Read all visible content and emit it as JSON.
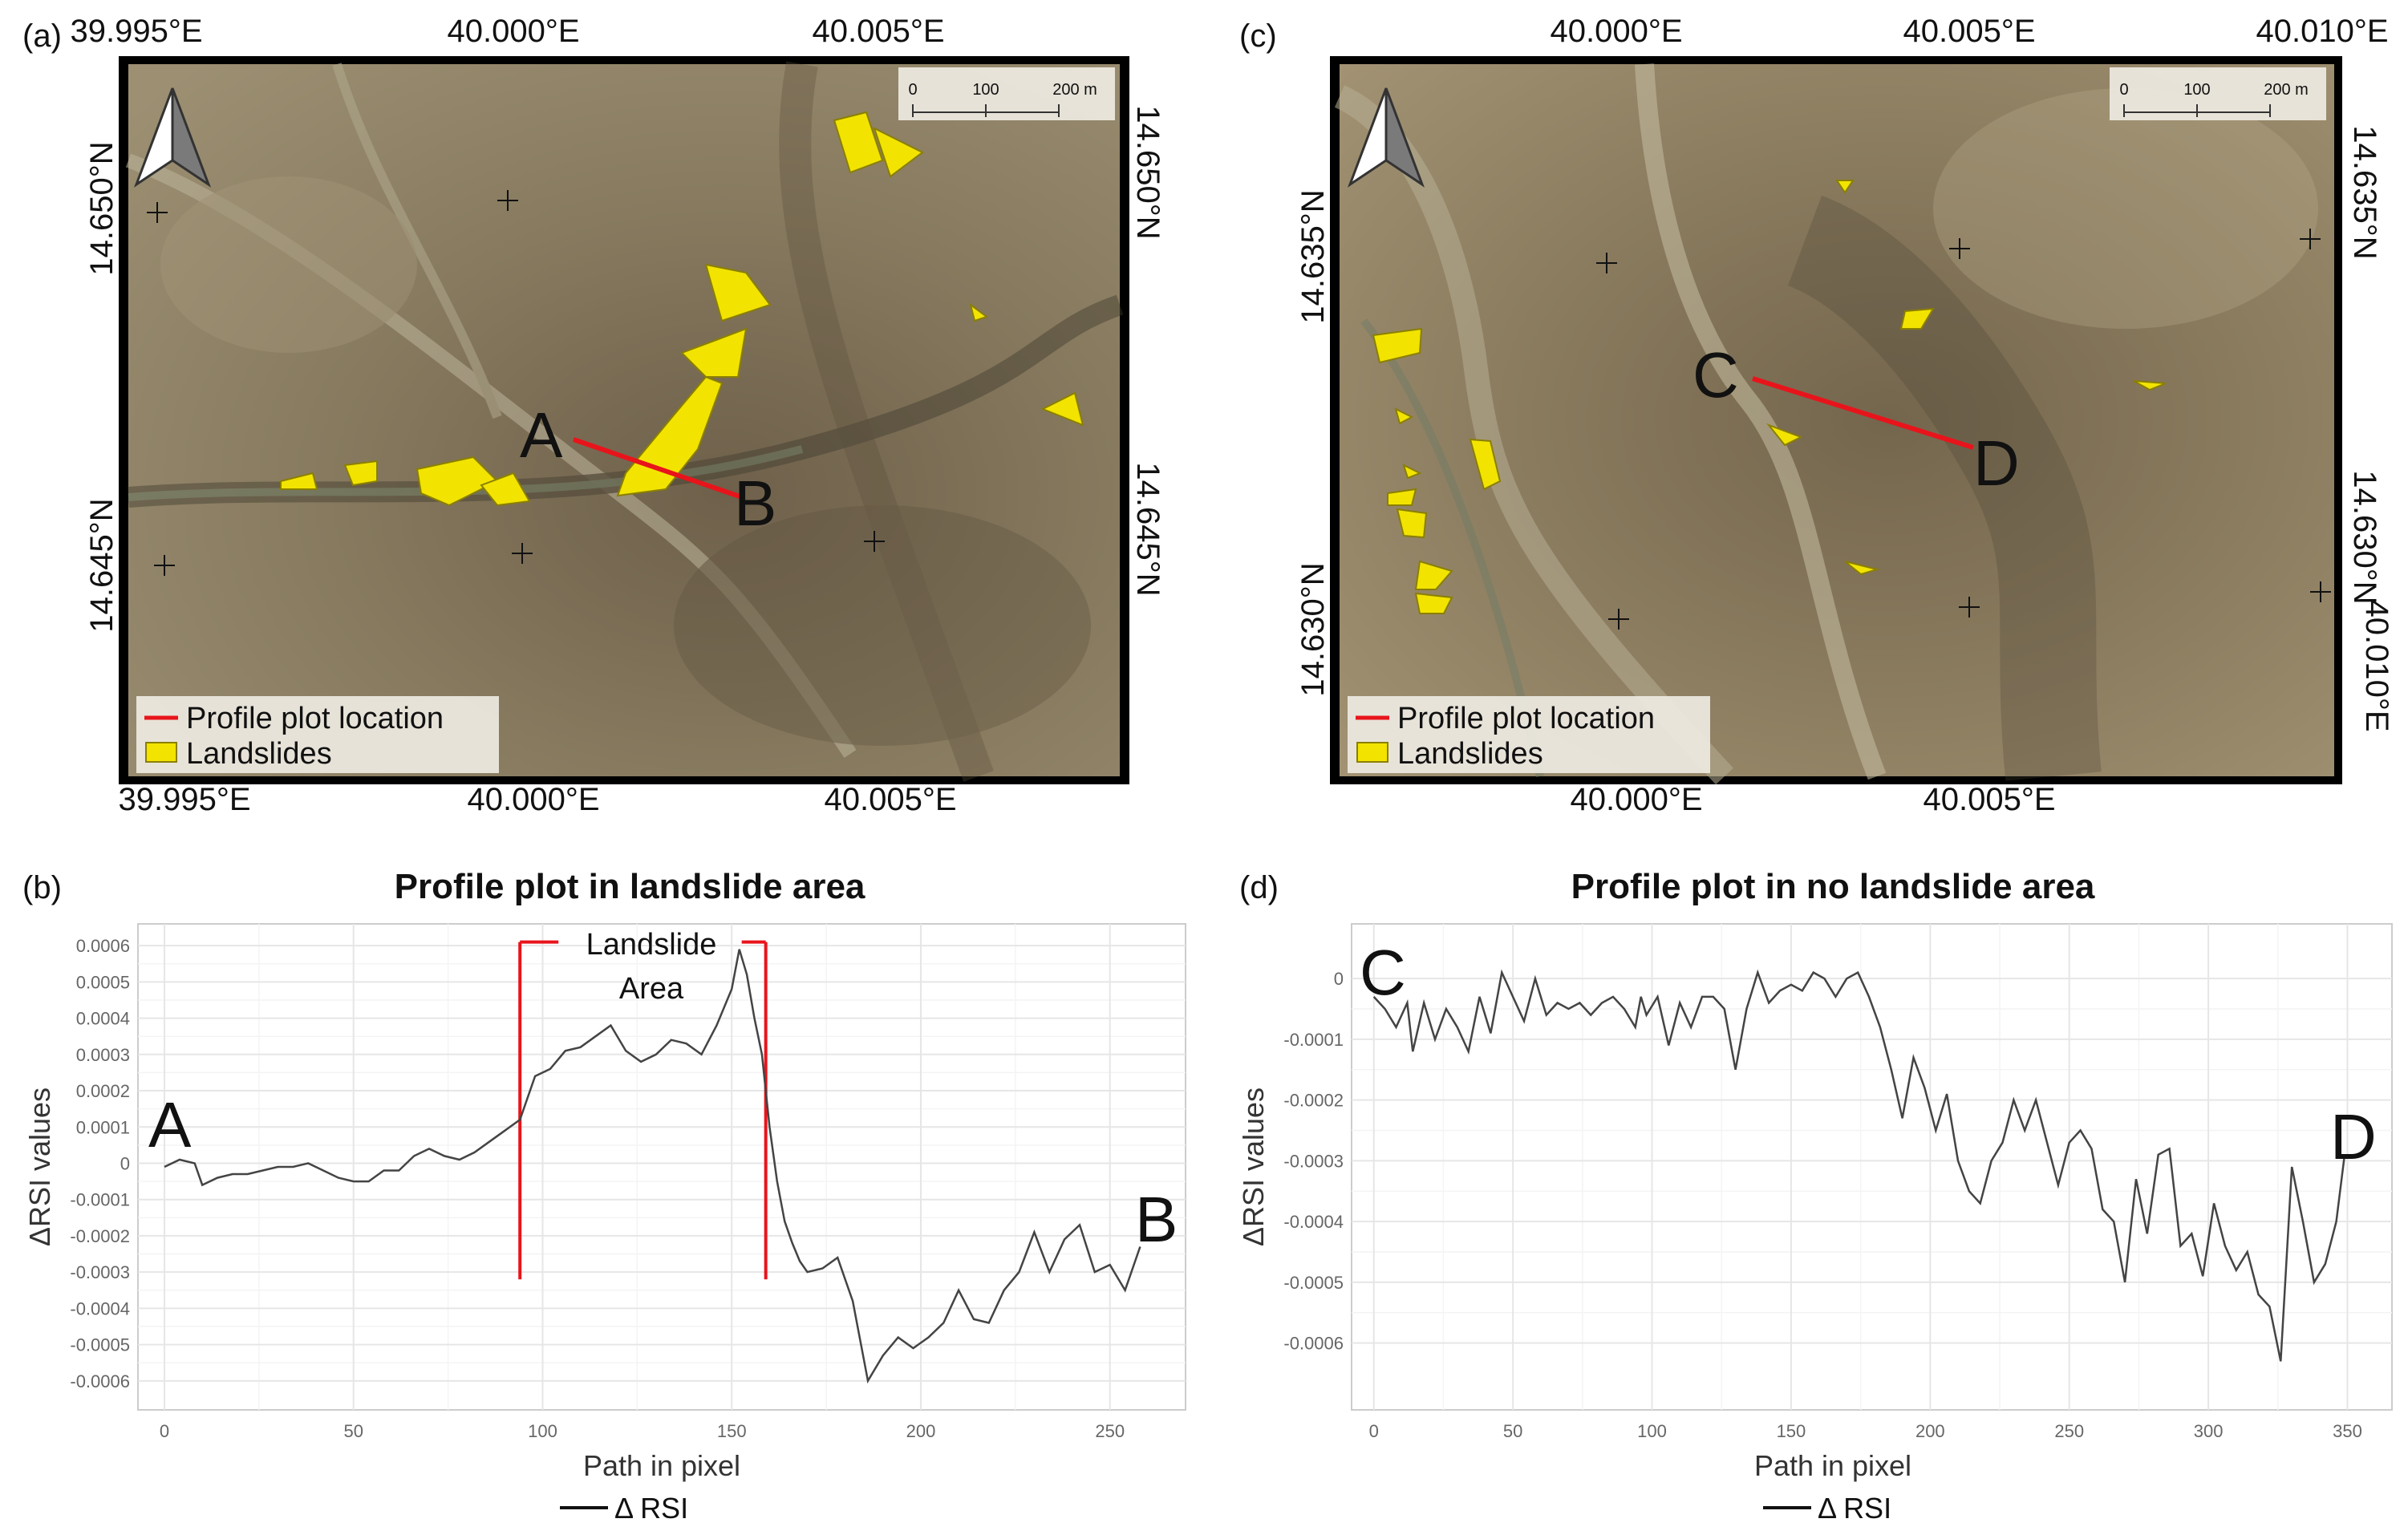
{
  "panels": {
    "a": {
      "label": "(a)"
    },
    "b": {
      "label": "(b)"
    },
    "c": {
      "label": "(c)"
    },
    "d": {
      "label": "(d)"
    }
  },
  "map_a": {
    "top_ticks": [
      "39.995°E",
      "40.000°E",
      "40.005°E"
    ],
    "bottom_ticks": [
      "39.995°E",
      "40.000°E",
      "40.005°E"
    ],
    "left_ticks": [
      "14.650°N",
      "14.645°N"
    ],
    "right_ticks": [
      "14.650°N",
      "14.645°N"
    ],
    "scalebar": [
      "0",
      "100",
      "200 m"
    ],
    "point_start": "A",
    "point_end": "B",
    "legend": {
      "profile": "Profile plot location",
      "landslides": "Landslides"
    }
  },
  "map_c": {
    "top_ticks": [
      "40.000°E",
      "40.005°E",
      "40.010°E"
    ],
    "bottom_ticks": [
      "40.000°E",
      "40.005°E",
      "40.010°E"
    ],
    "left_ticks": [
      "14.635°N",
      "14.630°N"
    ],
    "right_ticks": [
      "14.635°N",
      "14.630°N"
    ],
    "scalebar": [
      "0",
      "100",
      "200 m"
    ],
    "point_start": "C",
    "point_end": "D",
    "legend": {
      "profile": "Profile plot location",
      "landslides": "Landslides"
    }
  },
  "colors": {
    "landslide": "#f2e400",
    "profile_line": "#e8141b",
    "plot_line": "#444444",
    "grid": "#ececec"
  },
  "chart_data": [
    {
      "type": "line",
      "title": "Profile plot in landslide area",
      "xlabel": "Path in pixel",
      "ylabel": "ΔRSI values",
      "legend": "Δ RSI",
      "legend_position": "bottom",
      "grid": true,
      "xlim": [
        -7,
        270
      ],
      "ylim": [
        -0.00068,
        0.00066
      ],
      "x_ticks": [
        0,
        50,
        100,
        150,
        200,
        250
      ],
      "y_ticks": [
        -0.0006,
        -0.0005,
        -0.0004,
        -0.0003,
        -0.0002,
        -0.0001,
        0,
        0.0001,
        0.0002,
        0.0003,
        0.0004,
        0.0005,
        0.0006
      ],
      "y_tick_labels": [
        "-0.0006",
        "-0.0005",
        "-0.0004",
        "-0.0003",
        "-0.0002",
        "-0.0001",
        "0",
        "0.0001",
        "0.0002",
        "0.0003",
        "0.0004",
        "0.0005",
        "0.0006"
      ],
      "annotations": {
        "start": "A",
        "end": "B",
        "region_line1": "Landslide",
        "region_line2": "Area"
      },
      "region": {
        "x_start": 94,
        "x_end": 159,
        "y_top": 0.00061,
        "y_bottom": -0.00032
      },
      "x": [
        0,
        4,
        8,
        10,
        14,
        18,
        22,
        26,
        30,
        34,
        38,
        42,
        46,
        50,
        54,
        58,
        62,
        66,
        70,
        74,
        78,
        82,
        86,
        90,
        94,
        98,
        102,
        106,
        110,
        114,
        118,
        122,
        126,
        130,
        134,
        138,
        142,
        146,
        150,
        152,
        154,
        156,
        158,
        160,
        162,
        164,
        166,
        168,
        170,
        174,
        178,
        182,
        186,
        190,
        194,
        198,
        202,
        206,
        210,
        214,
        218,
        222,
        226,
        230,
        234,
        238,
        242,
        246,
        250,
        254,
        258
      ],
      "y": [
        -1e-05,
        1e-05,
        0.0,
        -6e-05,
        -4e-05,
        -3e-05,
        -3e-05,
        -2e-05,
        -1e-05,
        -1e-05,
        0.0,
        -2e-05,
        -4e-05,
        -5e-05,
        -5e-05,
        -2e-05,
        -2e-05,
        2e-05,
        4e-05,
        2e-05,
        1e-05,
        3e-05,
        6e-05,
        9e-05,
        0.00012,
        0.00024,
        0.00026,
        0.00031,
        0.00032,
        0.00035,
        0.00038,
        0.00031,
        0.00028,
        0.0003,
        0.00034,
        0.00033,
        0.0003,
        0.00038,
        0.00048,
        0.00059,
        0.00052,
        0.0004,
        0.0003,
        0.0001,
        -5e-05,
        -0.00016,
        -0.00022,
        -0.00027,
        -0.0003,
        -0.00029,
        -0.00026,
        -0.00038,
        -0.0006,
        -0.00053,
        -0.00048,
        -0.00051,
        -0.00048,
        -0.00044,
        -0.00035,
        -0.00043,
        -0.00044,
        -0.00035,
        -0.0003,
        -0.00019,
        -0.0003,
        -0.00021,
        -0.00017,
        -0.0003,
        -0.00028,
        -0.00035,
        -0.00023
      ]
    },
    {
      "type": "line",
      "title": "Profile plot in no landslide area",
      "xlabel": "Path in pixel",
      "ylabel": "ΔRSI values",
      "legend": "Δ RSI",
      "legend_position": "bottom",
      "grid": true,
      "xlim": [
        -8,
        366
      ],
      "ylim": [
        -0.00071,
        9e-05
      ],
      "x_ticks": [
        0,
        50,
        100,
        150,
        200,
        250,
        300,
        350
      ],
      "y_ticks": [
        -0.0006,
        -0.0005,
        -0.0004,
        -0.0003,
        -0.0002,
        -0.0001,
        0
      ],
      "y_tick_labels": [
        "-0.0006",
        "-0.0005",
        "-0.0004",
        "-0.0003",
        "-0.0002",
        "-0.0001",
        "0"
      ],
      "annotations": {
        "start": "C",
        "end": "D"
      },
      "x": [
        0,
        4,
        8,
        12,
        14,
        18,
        22,
        26,
        30,
        34,
        38,
        42,
        46,
        50,
        54,
        58,
        62,
        66,
        70,
        74,
        78,
        82,
        86,
        90,
        94,
        96,
        98,
        102,
        106,
        110,
        114,
        118,
        122,
        126,
        130,
        134,
        138,
        142,
        146,
        150,
        154,
        158,
        162,
        166,
        170,
        174,
        178,
        182,
        186,
        190,
        194,
        198,
        202,
        206,
        210,
        214,
        218,
        222,
        226,
        230,
        234,
        238,
        242,
        246,
        250,
        254,
        258,
        262,
        266,
        270,
        274,
        278,
        282,
        286,
        290,
        294,
        298,
        302,
        306,
        310,
        314,
        318,
        322,
        326,
        330,
        334,
        338,
        342,
        346,
        349
      ],
      "y": [
        -3e-05,
        -5e-05,
        -8e-05,
        -4e-05,
        -0.00012,
        -4e-05,
        -0.0001,
        -5e-05,
        -8e-05,
        -0.00012,
        -3e-05,
        -9e-05,
        1e-05,
        -3e-05,
        -7e-05,
        0.0,
        -6e-05,
        -4e-05,
        -5e-05,
        -4e-05,
        -6e-05,
        -4e-05,
        -3e-05,
        -5e-05,
        -8e-05,
        -3e-05,
        -6e-05,
        -3e-05,
        -0.00011,
        -4e-05,
        -8e-05,
        -3e-05,
        -3e-05,
        -5e-05,
        -0.00015,
        -5e-05,
        1e-05,
        -4e-05,
        -2e-05,
        -1e-05,
        -2e-05,
        1e-05,
        0.0,
        -3e-05,
        0.0,
        1e-05,
        -3e-05,
        -8e-05,
        -0.00015,
        -0.00023,
        -0.00013,
        -0.00018,
        -0.00025,
        -0.00019,
        -0.0003,
        -0.00035,
        -0.00037,
        -0.0003,
        -0.00027,
        -0.0002,
        -0.00025,
        -0.0002,
        -0.00027,
        -0.00034,
        -0.00027,
        -0.00025,
        -0.00028,
        -0.00038,
        -0.0004,
        -0.0005,
        -0.00033,
        -0.00042,
        -0.00029,
        -0.00028,
        -0.00044,
        -0.00042,
        -0.00049,
        -0.00037,
        -0.00044,
        -0.00048,
        -0.00045,
        -0.00052,
        -0.00054,
        -0.00063,
        -0.00031,
        -0.0004,
        -0.0005,
        -0.00047,
        -0.0004,
        -0.00029
      ]
    }
  ]
}
